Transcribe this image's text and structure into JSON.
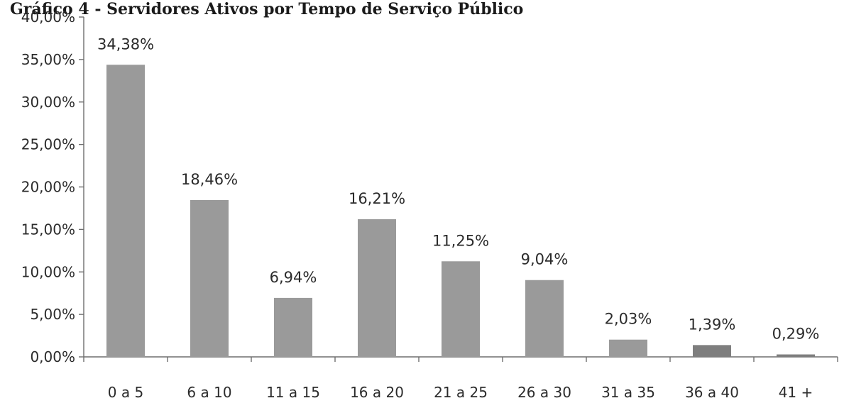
{
  "chart_data": {
    "type": "bar",
    "title": "Gráfico 4 - Servidores Ativos por Tempo de Serviço Público",
    "categories": [
      "0 a 5",
      "6 a 10",
      "11 a 15",
      "16 a 20",
      "21 a 25",
      "26 a 30",
      "31 a 35",
      "36 a 40",
      "41 +"
    ],
    "values": [
      34.38,
      18.46,
      6.94,
      16.21,
      11.25,
      9.04,
      2.03,
      1.39,
      0.29
    ],
    "data_labels": [
      "34,38%",
      "18,46%",
      "6,94%",
      "16,21%",
      "11,25%",
      "9,04%",
      "2,03%",
      "1,39%",
      "0,29%"
    ],
    "yticks": [
      0,
      5,
      10,
      15,
      20,
      25,
      30,
      35,
      40
    ],
    "ytick_labels": [
      "0,00%",
      "5,00%",
      "10,00%",
      "15,00%",
      "20,00%",
      "25,00%",
      "30,00%",
      "35,00%",
      "40,00%"
    ],
    "ylim": [
      0,
      40
    ],
    "xlabel": "",
    "ylabel": "",
    "grid": false,
    "legend": "none",
    "colors": {
      "bar": "#9a9a9a",
      "bar_dark": "#7e7e7e",
      "axis": "#6e6e6e",
      "text": "#2b2b2b"
    }
  }
}
